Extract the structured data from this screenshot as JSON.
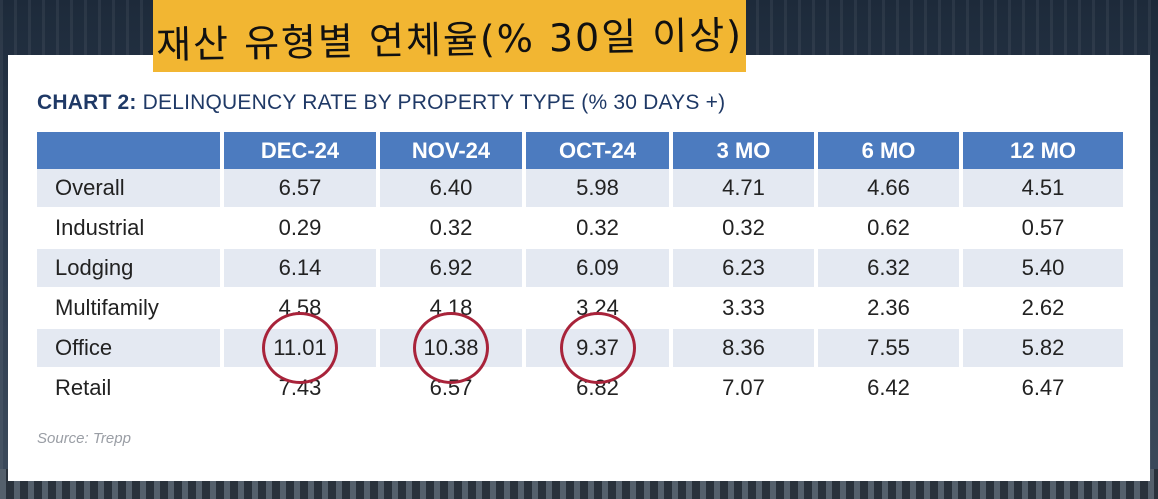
{
  "overlay": {
    "title": "재산 유형별 연체율(% 30일 이상)"
  },
  "chart_data": {
    "type": "table",
    "title_bold": "CHART 2:",
    "title_rest": "DELINQUENCY RATE BY PROPERTY TYPE (% 30 DAYS +)",
    "columns": [
      "DEC-24",
      "NOV-24",
      "OCT-24",
      "3 MO",
      "6 MO",
      "12 MO"
    ],
    "rows": [
      {
        "label": "Overall",
        "values": [
          "6.57",
          "6.40",
          "5.98",
          "4.71",
          "4.66",
          "4.51"
        ]
      },
      {
        "label": "Industrial",
        "values": [
          "0.29",
          "0.32",
          "0.32",
          "0.32",
          "0.62",
          "0.57"
        ]
      },
      {
        "label": "Lodging",
        "values": [
          "6.14",
          "6.92",
          "6.09",
          "6.23",
          "6.32",
          "5.40"
        ]
      },
      {
        "label": "Multifamily",
        "values": [
          "4.58",
          "4.18",
          "3.24",
          "3.33",
          "2.36",
          "2.62"
        ]
      },
      {
        "label": "Office",
        "values": [
          "11.01",
          "10.38",
          "9.37",
          "8.36",
          "7.55",
          "5.82"
        ]
      },
      {
        "label": "Retail",
        "values": [
          "7.43",
          "6.57",
          "6.82",
          "7.07",
          "6.42",
          "6.47"
        ]
      }
    ],
    "highlighted": [
      {
        "row": "Office",
        "column": "DEC-24"
      },
      {
        "row": "Office",
        "column": "NOV-24"
      },
      {
        "row": "Office",
        "column": "OCT-24"
      }
    ],
    "source": "Source: Trepp",
    "colors": {
      "header": "#4c7bbf",
      "shaded_row": "#e4e9f2",
      "title": "#1f3966",
      "circle": "#a8233a",
      "banner": "#f2b632"
    }
  }
}
